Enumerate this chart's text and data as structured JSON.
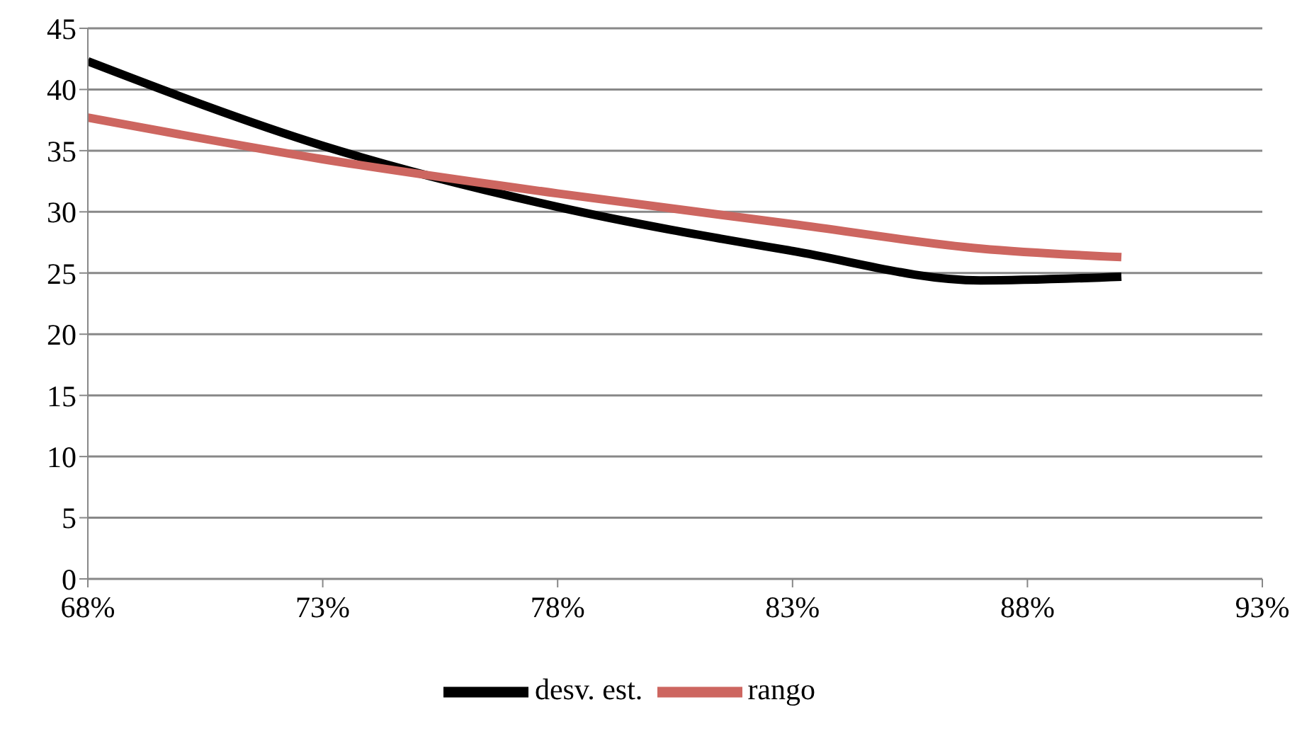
{
  "chart_data": {
    "type": "line",
    "x": [
      68,
      73,
      78,
      83,
      87,
      90
    ],
    "series": [
      {
        "name": "desv. est.",
        "color": "#000000",
        "values": [
          42.3,
          35.4,
          30.4,
          26.8,
          24.4,
          24.7
        ]
      },
      {
        "name": "rango",
        "color": "#cd6660",
        "values": [
          37.7,
          34.3,
          31.5,
          29.0,
          27.0,
          26.3
        ]
      }
    ],
    "xlim": [
      68,
      93
    ],
    "xticks": [
      {
        "value": 68,
        "label": "68%"
      },
      {
        "value": 73,
        "label": "73%"
      },
      {
        "value": 78,
        "label": "78%"
      },
      {
        "value": 83,
        "label": "83%"
      },
      {
        "value": 88,
        "label": "88%"
      },
      {
        "value": 93,
        "label": "93%"
      }
    ],
    "ylim": [
      0,
      45
    ],
    "yticks": [
      0,
      5,
      10,
      15,
      20,
      25,
      30,
      35,
      40,
      45
    ],
    "grid": "y",
    "legend": "bottom",
    "marker": "none",
    "line_style": "solid"
  }
}
